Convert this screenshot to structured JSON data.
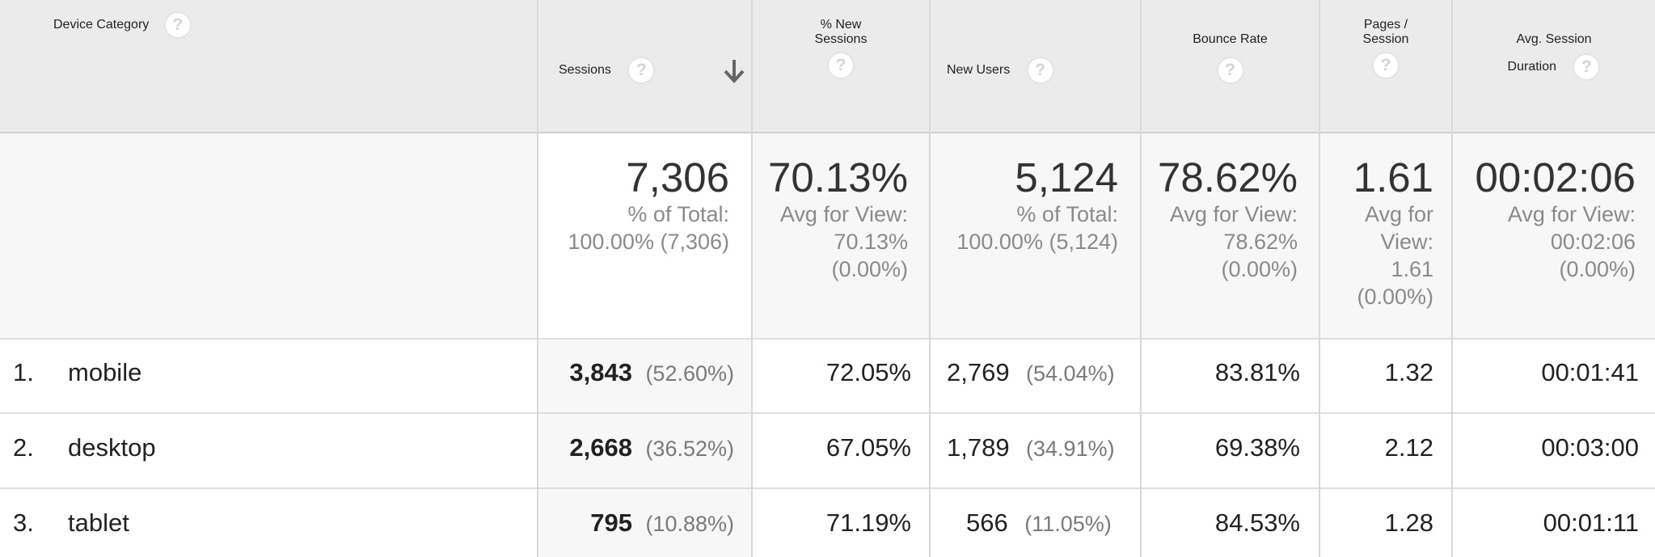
{
  "columns": {
    "dimension": "Device Category",
    "sessions": "Sessions",
    "new_sessions_l1": "% New",
    "new_sessions_l2": "Sessions",
    "new_users": "New Users",
    "bounce_rate": "Bounce Rate",
    "pages_l1": "Pages /",
    "pages_l2": "Session",
    "duration_l1": "Avg. Session",
    "duration_l2": "Duration"
  },
  "icons": {
    "help": "?",
    "sort": "arrow-down"
  },
  "totals": {
    "sessions": {
      "value": "7,306",
      "sub1": "% of Total:",
      "sub2": "100.00% (7,306)"
    },
    "new_sessions": {
      "value": "70.13%",
      "sub1": "Avg for View:",
      "sub2": "70.13%",
      "sub3": "(0.00%)"
    },
    "new_users": {
      "value": "5,124",
      "sub1": "% of Total:",
      "sub2": "100.00% (5,124)"
    },
    "bounce_rate": {
      "value": "78.62%",
      "sub1": "Avg for View:",
      "sub2": "78.62%",
      "sub3": "(0.00%)"
    },
    "pages": {
      "value": "1.61",
      "sub1": "Avg for",
      "sub2": "View:",
      "sub3": "1.61",
      "sub4": "(0.00%)"
    },
    "duration": {
      "value": "00:02:06",
      "sub1": "Avg for View:",
      "sub2": "00:02:06",
      "sub3": "(0.00%)"
    }
  },
  "rows": [
    {
      "index": "1.",
      "device": "mobile",
      "sessions": "3,843",
      "sessions_pct": "(52.60%)",
      "new_sessions": "72.05%",
      "new_users": "2,769",
      "new_users_pct": "(54.04%)",
      "bounce_rate": "83.81%",
      "pages": "1.32",
      "duration": "00:01:41"
    },
    {
      "index": "2.",
      "device": "desktop",
      "sessions": "2,668",
      "sessions_pct": "(36.52%)",
      "new_sessions": "67.05%",
      "new_users": "1,789",
      "new_users_pct": "(34.91%)",
      "bounce_rate": "69.38%",
      "pages": "2.12",
      "duration": "00:03:00"
    },
    {
      "index": "3.",
      "device": "tablet",
      "sessions": "795",
      "sessions_pct": "(10.88%)",
      "new_sessions": "71.19%",
      "new_users": "566",
      "new_users_pct": "(11.05%)",
      "bounce_rate": "84.53%",
      "pages": "1.28",
      "duration": "00:01:11"
    }
  ]
}
